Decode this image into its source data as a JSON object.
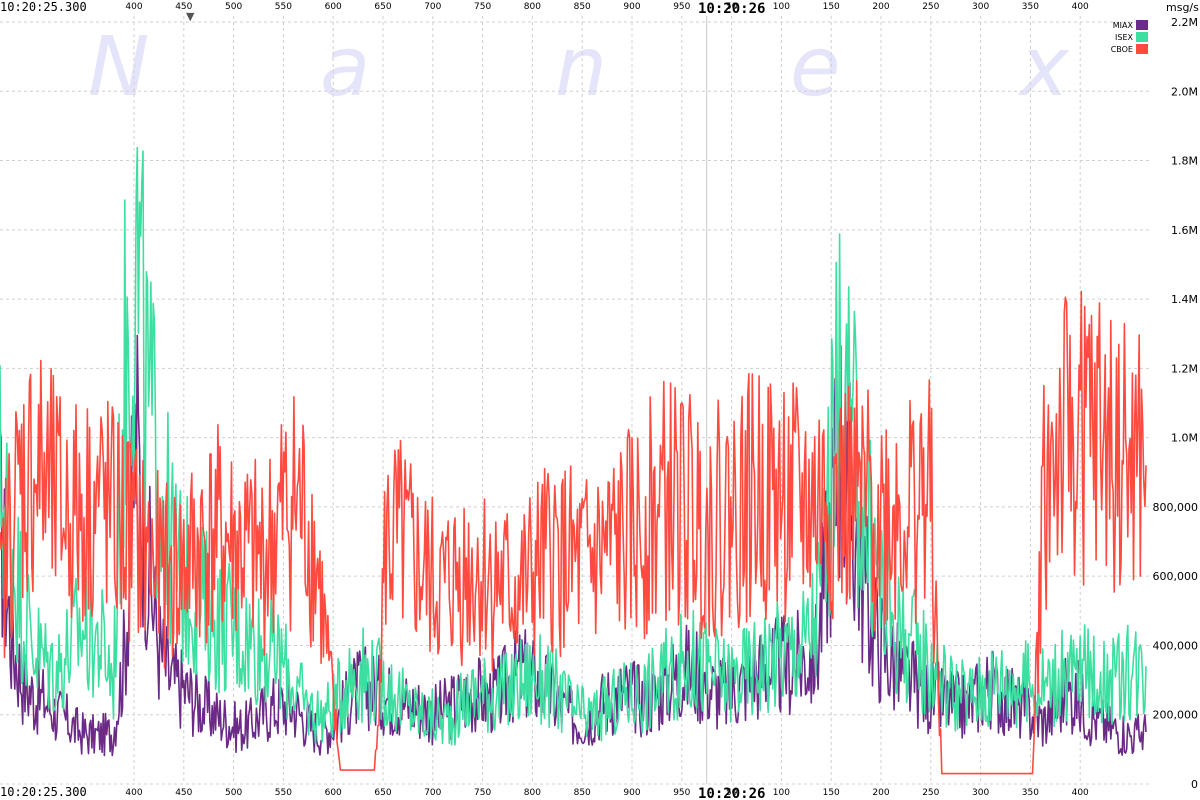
{
  "chart_data": {
    "type": "line",
    "unit_label": "msg/s",
    "watermark": [
      "N",
      "a",
      "n",
      "e",
      "x"
    ],
    "time_left_top": "10:20:25.300",
    "time_left_bottom": "10:20:25.300",
    "time_center_top": "10:20:26",
    "time_center_bottom": "10:20:26",
    "marker_symbol": "▼",
    "ms_ticks": [
      "400",
      "450",
      "500",
      "550",
      "600",
      "650",
      "700",
      "750",
      "800",
      "850",
      "900",
      "950",
      "50",
      "100",
      "150",
      "200",
      "250",
      "300",
      "350",
      "400"
    ],
    "y_ticks": [
      "0",
      "200,000",
      "400,000",
      "600,000",
      "800,000",
      "1.0M",
      "1.2M",
      "1.4M",
      "1.6M",
      "1.8M",
      "2.0M",
      "2.2M"
    ],
    "ylim": [
      0,
      2200000
    ],
    "legend": [
      {
        "name": "MIAX",
        "color": "#6a2a86"
      },
      {
        "name": "ISEX",
        "color": "#3ddfa0"
      },
      {
        "name": "CBOE",
        "color": "#ff4a40"
      }
    ],
    "series": [
      {
        "name": "MIAX",
        "color": "#6a2a86",
        "values": [
          760000,
          420000,
          300000,
          250000,
          240000,
          200000,
          180000,
          150000,
          140000,
          140000,
          150000,
          380000,
          1000000,
          650000,
          400000,
          300000,
          280000,
          250000,
          220000,
          200000,
          180000,
          160000,
          170000,
          200000,
          220000,
          230000,
          220000,
          180000,
          150000,
          160000,
          200000,
          260000,
          280000,
          270000,
          250000,
          240000,
          230000,
          220000,
          200000,
          210000,
          230000,
          250000,
          260000,
          250000,
          260000,
          300000,
          320000,
          300000,
          280000,
          240000,
          200000,
          180000,
          190000,
          230000,
          250000,
          260000,
          250000,
          240000,
          260000,
          300000,
          320000,
          330000,
          300000,
          270000,
          260000,
          280000,
          300000,
          320000,
          330000,
          340000,
          340000,
          360000,
          380000,
          700000,
          1000000,
          800000,
          600000,
          450000,
          380000,
          330000,
          300000,
          280000,
          250000,
          240000,
          230000,
          220000,
          250000,
          280000,
          260000,
          240000,
          220000,
          200000,
          180000,
          220000,
          260000,
          250000,
          200000,
          180000,
          160000,
          150000,
          140000,
          150000
        ]
      },
      {
        "name": "ISEX",
        "color": "#3ddfa0",
        "values": [
          880000,
          700000,
          500000,
          400000,
          350000,
          330000,
          380000,
          450000,
          430000,
          400000,
          300000,
          1200000,
          1550000,
          1100000,
          900000,
          700000,
          600000,
          550000,
          520000,
          480000,
          460000,
          430000,
          420000,
          400000,
          380000,
          340000,
          280000,
          220000,
          200000,
          210000,
          260000,
          320000,
          320000,
          300000,
          280000,
          250000,
          220000,
          200000,
          190000,
          180000,
          200000,
          240000,
          260000,
          270000,
          260000,
          270000,
          300000,
          310000,
          290000,
          270000,
          230000,
          200000,
          190000,
          210000,
          230000,
          250000,
          260000,
          270000,
          290000,
          320000,
          340000,
          350000,
          340000,
          320000,
          300000,
          310000,
          330000,
          350000,
          370000,
          380000,
          390000,
          410000,
          500000,
          800000,
          1150000,
          1000000,
          820000,
          650000,
          520000,
          450000,
          420000,
          380000,
          340000,
          300000,
          270000,
          250000,
          260000,
          280000,
          300000,
          300000,
          290000,
          280000,
          290000,
          300000,
          310000,
          320000,
          320000,
          310000,
          300000,
          310000,
          330000,
          340000
        ]
      },
      {
        "name": "CBOE",
        "color": "#ff4a40",
        "values": [
          520000,
          760000,
          880000,
          920000,
          860000,
          800000,
          790000,
          780000,
          800000,
          820000,
          760000,
          740000,
          700000,
          660000,
          620000,
          600000,
          620000,
          660000,
          700000,
          720000,
          700000,
          680000,
          660000,
          640000,
          700000,
          780000,
          820000,
          760000,
          620000,
          330000,
          40000,
          40000,
          40000,
          40000,
          690000,
          700000,
          660000,
          620000,
          580000,
          560000,
          590000,
          610000,
          620000,
          600000,
          580000,
          560000,
          560000,
          600000,
          640000,
          660000,
          640000,
          620000,
          640000,
          660000,
          680000,
          700000,
          720000,
          760000,
          800000,
          820000,
          800000,
          780000,
          760000,
          760000,
          780000,
          800000,
          820000,
          840000,
          830000,
          820000,
          800000,
          800000,
          810000,
          820000,
          820000,
          810000,
          800000,
          790000,
          780000,
          790000,
          800000,
          820000,
          830000,
          30000,
          30000,
          30000,
          30000,
          30000,
          30000,
          30000,
          30000,
          30000,
          850000,
          950000,
          980000,
          1000000,
          1010000,
          990000,
          960000,
          920000,
          900000,
          920000
        ]
      }
    ]
  }
}
